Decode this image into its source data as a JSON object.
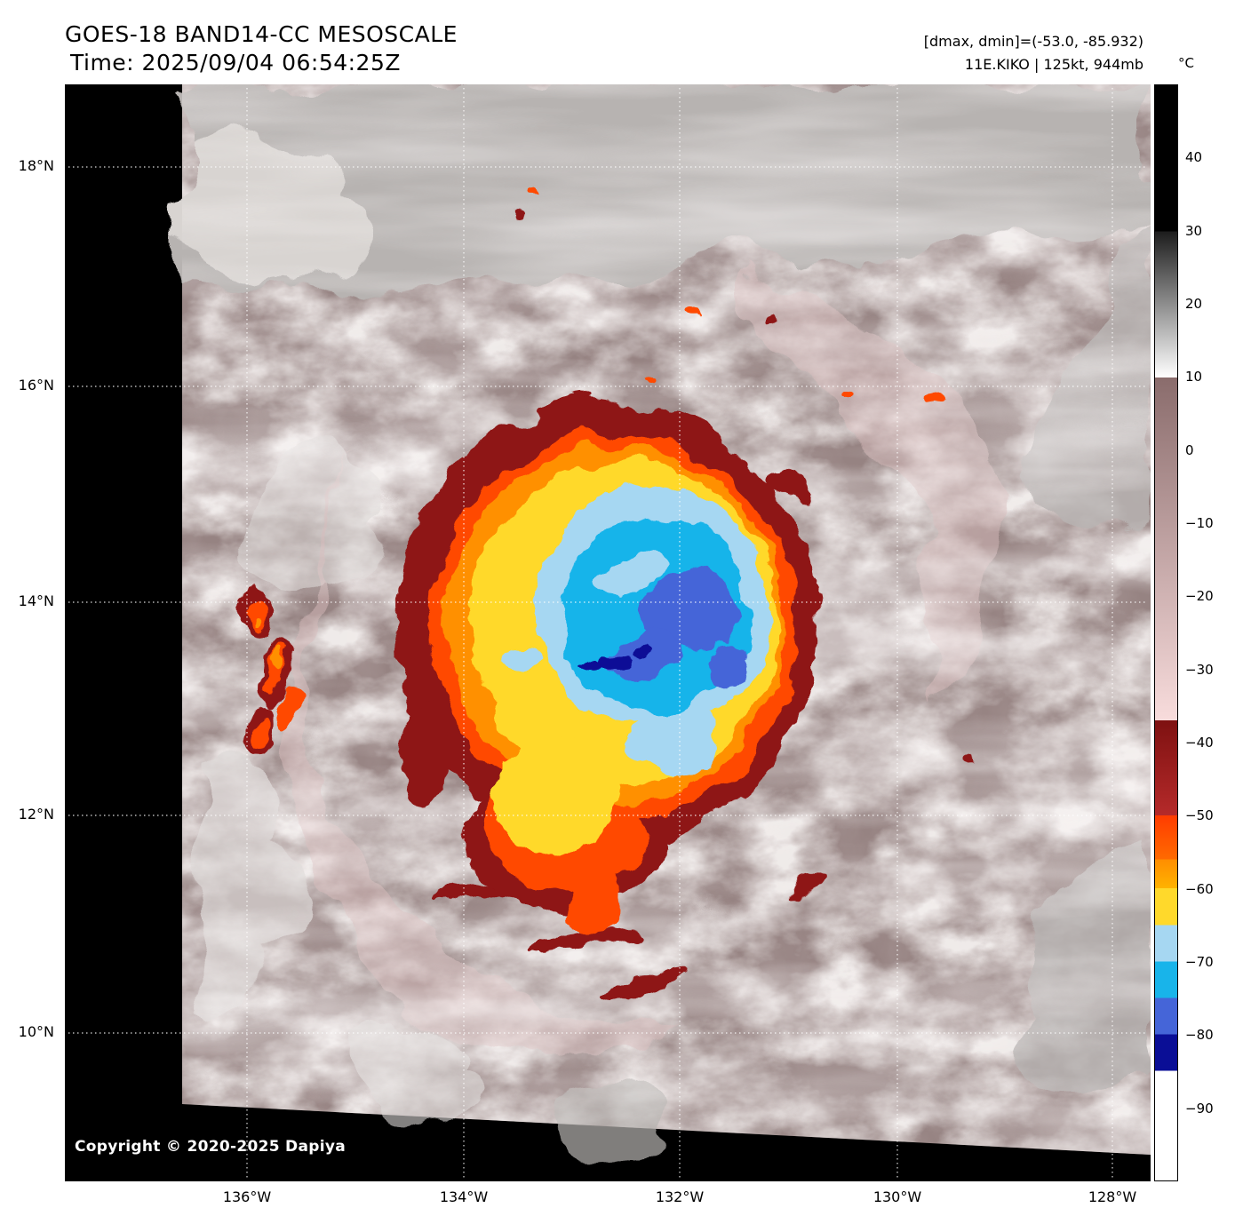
{
  "header": {
    "title": "GOES-18 BAND14-CC MESOSCALE",
    "time_line": "Time: 2025/09/04 06:54:25Z",
    "range_line": "[dmax, dmin]=(-53.0, -85.932)",
    "storm_line": "11E.KIKO | 125kt, 944mb"
  },
  "footer": {
    "copyright": "Copyright © 2020-2025 Dapiya"
  },
  "axes": {
    "lat_labels": [
      "18°N",
      "16°N",
      "14°N",
      "12°N",
      "10°N"
    ],
    "lon_labels": [
      "136°W",
      "134°W",
      "132°W",
      "130°W",
      "128°W"
    ]
  },
  "colorbar": {
    "unit": "°C",
    "domain": [
      50,
      -100
    ],
    "ticks": [
      {
        "label": "40",
        "value": 40
      },
      {
        "label": "30",
        "value": 30
      },
      {
        "label": "20",
        "value": 20
      },
      {
        "label": "10",
        "value": 10
      },
      {
        "label": "0",
        "value": 0
      },
      {
        "label": "−10",
        "value": -10
      },
      {
        "label": "−20",
        "value": -20
      },
      {
        "label": "−30",
        "value": -30
      },
      {
        "label": "−40",
        "value": -40
      },
      {
        "label": "−50",
        "value": -50
      },
      {
        "label": "−60",
        "value": -60
      },
      {
        "label": "−70",
        "value": -70
      },
      {
        "label": "−80",
        "value": -80
      },
      {
        "label": "−90",
        "value": -90
      }
    ],
    "segments": [
      {
        "from": 50,
        "to": 30,
        "colors": [
          "#000000",
          "#000000"
        ]
      },
      {
        "from": 30,
        "to": 10,
        "colors": [
          "#1c1c1c",
          "#ffffff"
        ]
      },
      {
        "from": 10,
        "to": -37,
        "colors": [
          "#8a6c6c",
          "#f8dcdc"
        ]
      },
      {
        "from": -37,
        "to": -50,
        "colors": [
          "#7e1111",
          "#b52a2a"
        ]
      },
      {
        "from": -50,
        "to": -56,
        "colors": [
          "#ff3c00",
          "#ff6a00"
        ]
      },
      {
        "from": -56,
        "to": -60,
        "colors": [
          "#ff8d00",
          "#ffb300"
        ]
      },
      {
        "from": -60,
        "to": -65,
        "colors": [
          "#ffd92b",
          "#ffd92b"
        ]
      },
      {
        "from": -65,
        "to": -70,
        "colors": [
          "#a6d7f2",
          "#a6d7f2"
        ]
      },
      {
        "from": -70,
        "to": -75,
        "colors": [
          "#18b4ea",
          "#18b4ea"
        ]
      },
      {
        "from": -75,
        "to": -80,
        "colors": [
          "#4565d8",
          "#4565d8"
        ]
      },
      {
        "from": -80,
        "to": -85,
        "colors": [
          "#0a0e96",
          "#0a0e96"
        ]
      },
      {
        "from": -85,
        "to": -100,
        "colors": [
          "#ffffff",
          "#ffffff"
        ]
      }
    ]
  },
  "scene": {
    "background": "#000000",
    "swath_base": "#968382",
    "warm_gray": "#b7b3b1",
    "light_gray": "#dbd7d5",
    "pink_band": "#d8bcbc",
    "dark_red": "#8e1616",
    "orange_red": "#ff4a00",
    "orange": "#ff9000",
    "yellow": "#ffd92b",
    "light_blue": "#a6d7f2",
    "cyan": "#18b4ea",
    "royal_blue": "#4565d8",
    "navy": "#0a0e96",
    "grid_color": "#ffffff"
  },
  "chart_data": {
    "type": "heatmap",
    "title": "GOES-18 BAND14-CC MESOSCALE",
    "subtitle": "Time: 2025/09/04 06:54:25Z",
    "annotations": [
      "[dmax, dmin]=(-53.0, -85.932)",
      "11E.KIKO | 125kt, 944mb",
      "Copyright © 2020-2025 Dapiya"
    ],
    "colorbar_unit": "°C",
    "colorbar_ticks_c": [
      40,
      30,
      20,
      10,
      0,
      -10,
      -20,
      -30,
      -40,
      -50,
      -60,
      -70,
      -80,
      -90
    ],
    "x_tick_labels": [
      "136°W",
      "134°W",
      "132°W",
      "130°W",
      "128°W"
    ],
    "y_tick_labels": [
      "18°N",
      "16°N",
      "14°N",
      "12°N",
      "10°N"
    ],
    "legend_position": "right",
    "grid": true
  }
}
